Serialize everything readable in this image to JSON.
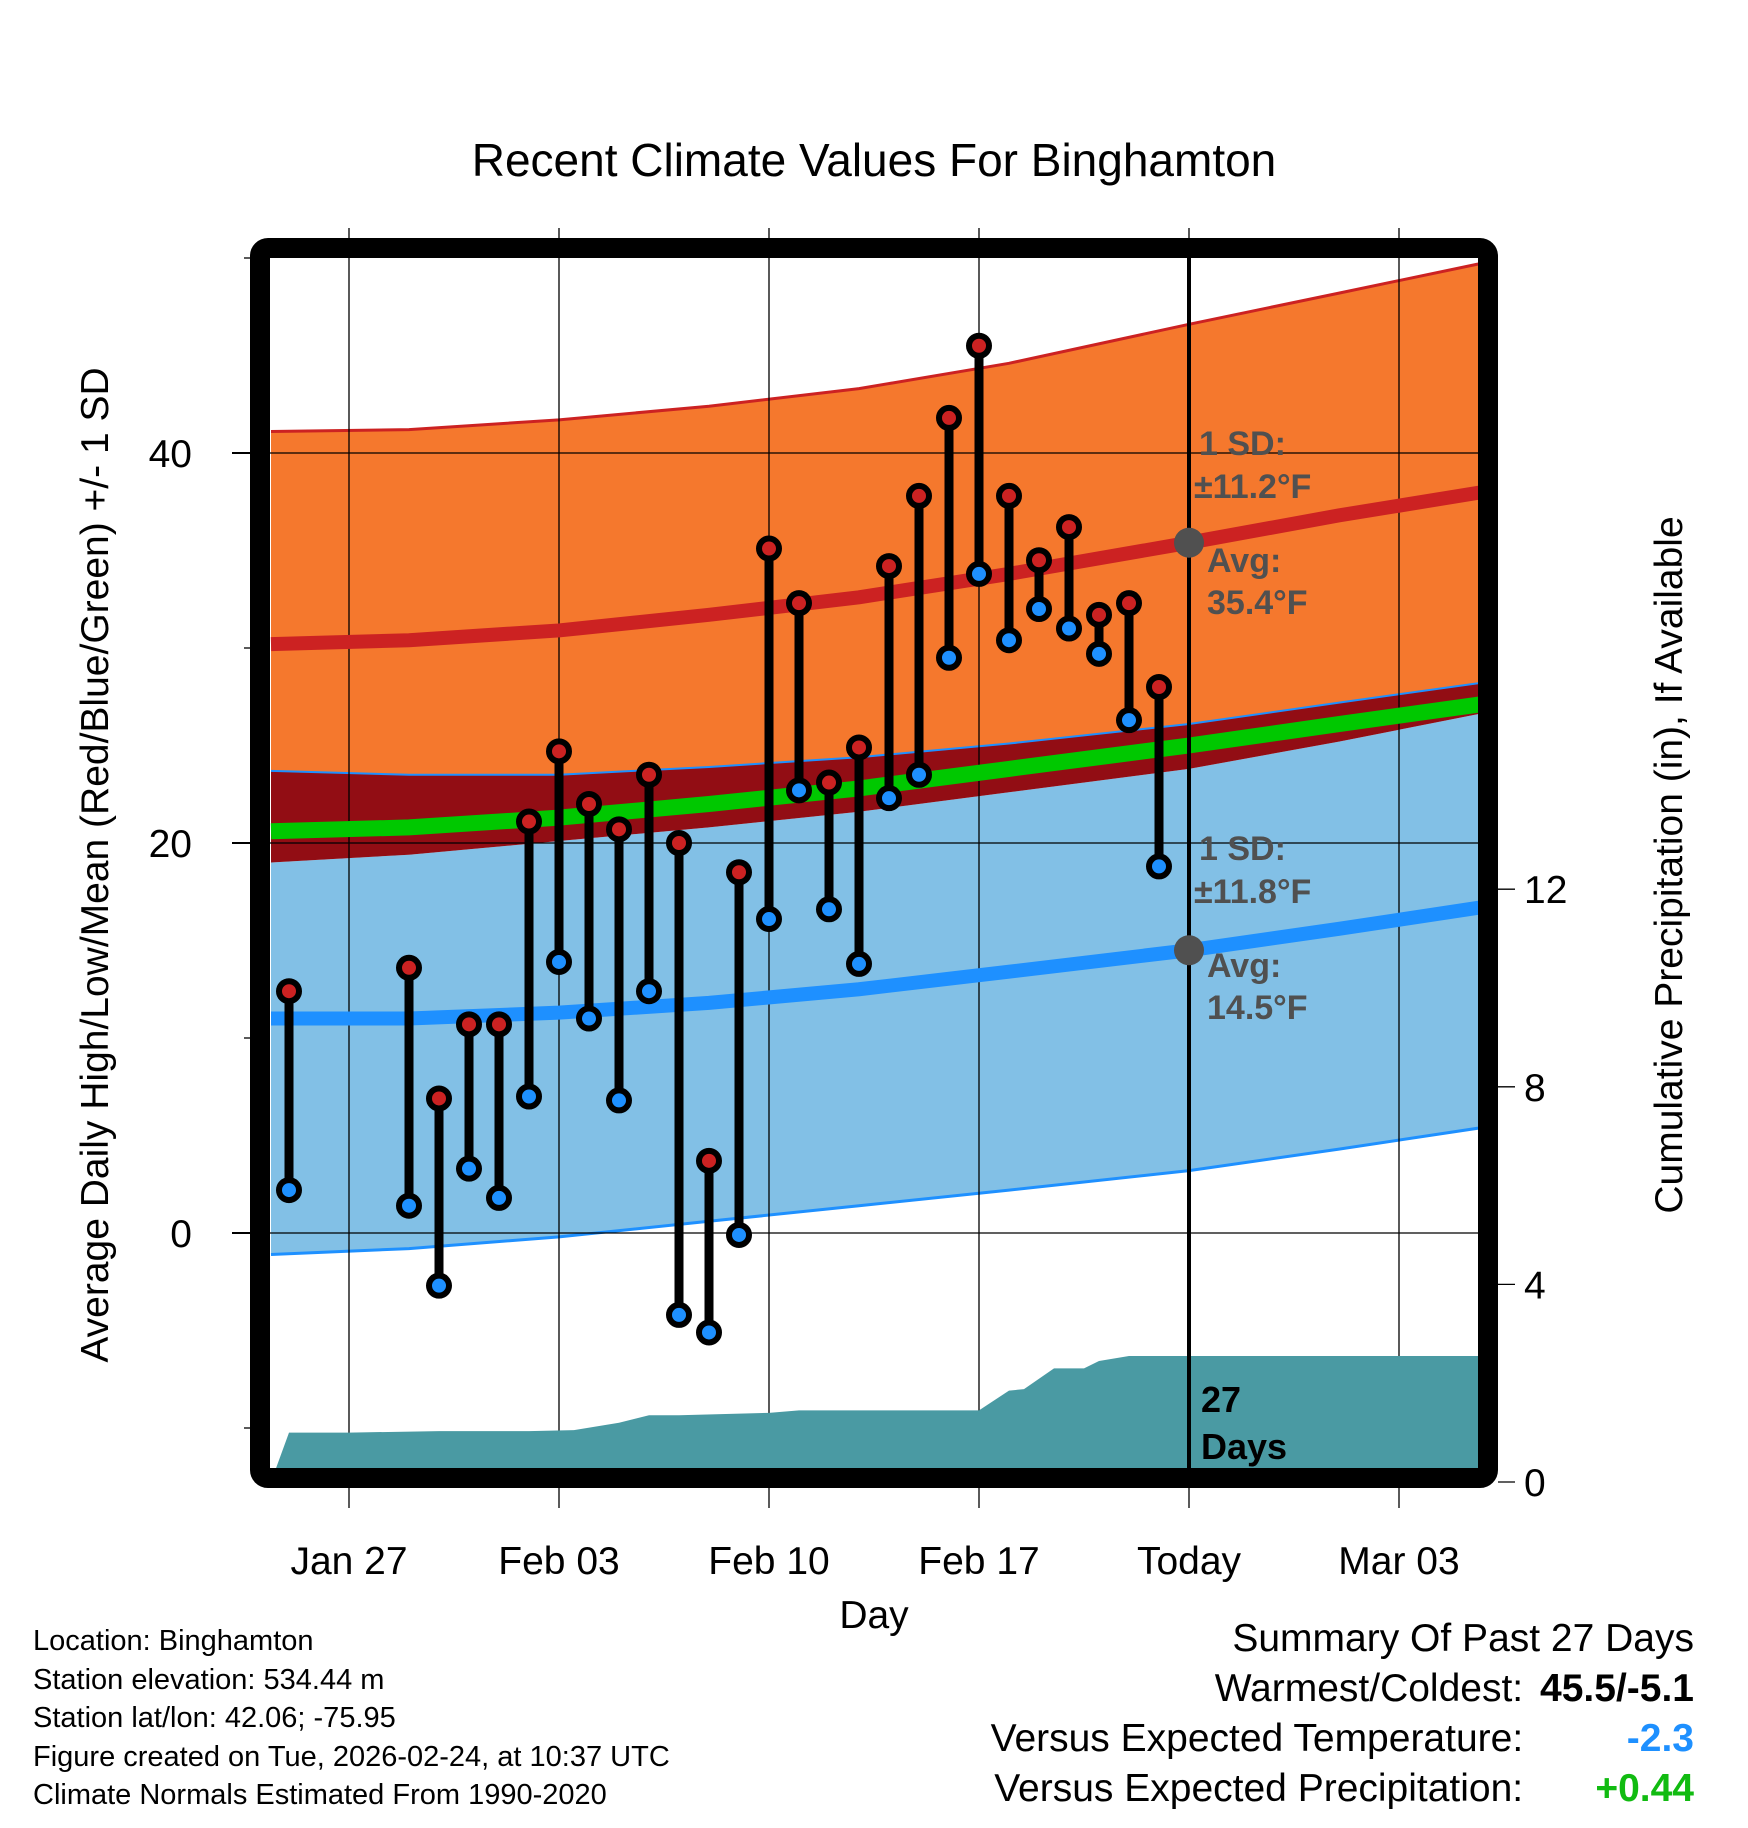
{
  "chart_data": {
    "type": "line",
    "title": "Recent Climate Values For Binghamton",
    "xlabel": "Day",
    "ylabel": "Average Daily High/Low/Mean (Red/Blue/Green) +/- 1 SD",
    "y2label": "Cumulative Precipitation (in), If Available",
    "x_range": [
      "Jan 24",
      "Mar 06"
    ],
    "ylim": [
      -12,
      50
    ],
    "y2lim": [
      0,
      12.5
    ],
    "y_ticks": [
      0,
      20,
      40
    ],
    "y_minor_ticks": [
      -10,
      10,
      30,
      50
    ],
    "y2_ticks": [
      0,
      4,
      8,
      12
    ],
    "x_ticks": [
      {
        "label": "Jan 27",
        "day": 3
      },
      {
        "label": "Feb 03",
        "day": 10
      },
      {
        "label": "Feb 10",
        "day": 17
      },
      {
        "label": "Feb 17",
        "day": 24
      },
      {
        "label": "Today",
        "day": 31
      },
      {
        "label": "Mar 03",
        "day": 38
      }
    ],
    "grid": true,
    "day_zero": "Jan 24",
    "today_day": 31,
    "observed": {
      "days": [
        1,
        5,
        6,
        7,
        8,
        9,
        10,
        11,
        12,
        13,
        14,
        15,
        16,
        17,
        18,
        19,
        20,
        21,
        22,
        23,
        24,
        25,
        26,
        27,
        28,
        29,
        30
      ],
      "dates": [
        "Jan 25",
        "Jan 29",
        "Jan 30",
        "Jan 31",
        "Feb 01",
        "Feb 02",
        "Feb 03",
        "Feb 04",
        "Feb 05",
        "Feb 06",
        "Feb 07",
        "Feb 08",
        "Feb 09",
        "Feb 10",
        "Feb 11",
        "Feb 12",
        "Feb 13",
        "Feb 14",
        "Feb 15",
        "Feb 16",
        "Feb 17",
        "Feb 18",
        "Feb 19",
        "Feb 20",
        "Feb 21",
        "Feb 22",
        "Feb 23"
      ],
      "high": [
        12.4,
        13.6,
        6.9,
        10.7,
        10.7,
        21.1,
        24.7,
        22.0,
        20.7,
        23.5,
        20.0,
        3.7,
        18.5,
        35.1,
        32.3,
        23.1,
        24.9,
        34.2,
        37.8,
        41.8,
        45.5,
        37.8,
        34.5,
        36.2,
        31.7,
        32.3,
        28.0
      ],
      "low": [
        2.2,
        1.4,
        -2.7,
        3.3,
        1.8,
        7.0,
        13.9,
        11.0,
        6.8,
        12.4,
        -4.2,
        -5.1,
        -0.1,
        16.1,
        22.7,
        16.6,
        13.8,
        22.3,
        23.5,
        29.5,
        33.8,
        30.4,
        32.0,
        31.0,
        29.7,
        26.3,
        18.8
      ]
    },
    "normals": {
      "days": [
        0.4,
        5,
        10,
        15,
        20,
        25,
        31,
        36,
        41.6
      ],
      "high_sd_top": [
        41.1,
        41.2,
        41.7,
        42.4,
        43.3,
        44.6,
        46.6,
        48.2,
        50.0
      ],
      "high_avg": [
        30.2,
        30.4,
        30.9,
        31.7,
        32.6,
        33.8,
        35.4,
        36.8,
        38.2
      ],
      "high_sd_bot": [
        23.7,
        23.5,
        23.5,
        23.9,
        24.4,
        25.1,
        26.1,
        27.2,
        28.4
      ],
      "mean": [
        20.6,
        20.8,
        21.3,
        22.0,
        22.8,
        23.8,
        25.0,
        26.1,
        27.3
      ],
      "low_sd_top": [
        19.0,
        19.4,
        20.1,
        20.8,
        21.6,
        22.6,
        23.8,
        25.2,
        26.9
      ],
      "low_avg": [
        11.0,
        11.0,
        11.3,
        11.8,
        12.5,
        13.4,
        14.5,
        15.6,
        16.9
      ],
      "low_sd_bot": [
        -1.1,
        -0.8,
        -0.2,
        0.6,
        1.4,
        2.2,
        3.2,
        4.3,
        5.6
      ]
    },
    "precipitation": {
      "days": [
        0.4,
        1,
        3,
        6,
        9,
        10.5,
        12,
        13,
        14,
        17,
        18,
        21,
        24,
        25,
        25.5,
        26.5,
        27.5,
        28,
        29,
        30,
        31,
        41.6
      ],
      "cumulative": [
        0.0,
        1.0,
        1.0,
        1.03,
        1.03,
        1.05,
        1.2,
        1.35,
        1.35,
        1.4,
        1.45,
        1.45,
        1.45,
        1.85,
        1.88,
        2.3,
        2.3,
        2.45,
        2.55,
        2.55,
        2.55,
        2.55
      ],
      "label_count": "27",
      "label_unit": "Days"
    },
    "annotations": {
      "high_sd": {
        "line1": "1 SD:",
        "line2": "±11.2°F"
      },
      "high_avg": {
        "line1": "Avg:",
        "line2": "35.4°F",
        "value": 35.4
      },
      "low_sd": {
        "line1": "1 SD:",
        "line2": "±11.8°F"
      },
      "low_avg": {
        "line1": "Avg:",
        "line2": "14.5°F",
        "value": 14.5
      }
    },
    "colors": {
      "high_band": "#f5782d",
      "high_line": "#cc2222",
      "overlap_band": "#920d14",
      "mean_line": "#00c800",
      "low_band": "#82c0e6",
      "low_line": "#1e90ff",
      "precip": "#4a9aa3",
      "annotation": "#505050",
      "high_marker": "#cc2222",
      "low_marker": "#1e90ff"
    }
  },
  "footer": {
    "location": "Location: Binghamton",
    "elevation": "Station elevation: 534.44 m",
    "latlon": "Station lat/lon: 42.06; -75.95",
    "created": "Figure created on Tue, 2026-02-24, at 10:37 UTC",
    "normals": "Climate Normals Estimated From 1990-2020"
  },
  "summary": {
    "title": "Summary Of Past 27 Days",
    "warmest_coldest_label": "Warmest/Coldest:",
    "warmest_coldest_value": "45.5/-5.1",
    "temp_label": "Versus Expected Temperature:",
    "temp_value": "-2.3",
    "temp_color": "#1e90ff",
    "precip_label": "Versus Expected Precipitation:",
    "precip_value": "+0.44",
    "precip_color": "#11bb11"
  }
}
